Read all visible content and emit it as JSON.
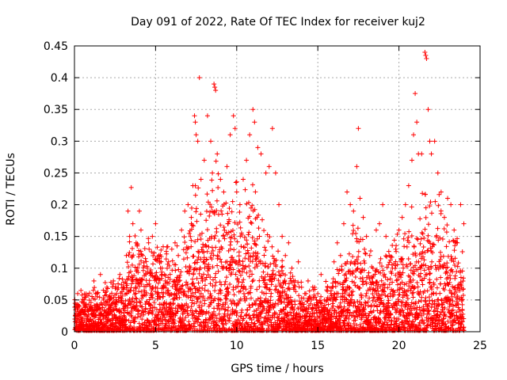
{
  "chart_data": {
    "type": "scatter",
    "title": "Day 091 of 2022, Rate Of TEC Index for receiver kuj2",
    "xlabel": "GPS time / hours",
    "ylabel": "ROTI / TECUs",
    "xlim": [
      0,
      25
    ],
    "ylim": [
      0,
      0.45
    ],
    "xticks": [
      0,
      5,
      10,
      15,
      20,
      25
    ],
    "yticks": [
      0,
      0.05,
      0.1,
      0.15,
      0.2,
      0.25,
      0.3,
      0.35,
      0.4,
      0.45
    ],
    "xtick_labels": [
      "0",
      "5",
      "10",
      "15",
      "20",
      "25"
    ],
    "ytick_labels": [
      "0",
      "0.05",
      "0.1",
      "0.15",
      "0.2",
      "0.25",
      "0.3",
      "0.35",
      "0.4",
      "0.45"
    ],
    "grid": true,
    "marker": "+",
    "color": "#ff0000",
    "series": [
      {
        "name": "",
        "points": [
          [
            0.1,
            0.02
          ],
          [
            0.2,
            0.06
          ],
          [
            0.3,
            0.04
          ],
          [
            0.4,
            0.065
          ],
          [
            0.5,
            0.03
          ],
          [
            0.6,
            0.05
          ],
          [
            0.8,
            0.02
          ],
          [
            1.0,
            0.04
          ],
          [
            1.2,
            0.08
          ],
          [
            1.4,
            0.06
          ],
          [
            1.6,
            0.09
          ],
          [
            1.8,
            0.05
          ],
          [
            2.0,
            0.07
          ],
          [
            2.2,
            0.04
          ],
          [
            2.4,
            0.08
          ],
          [
            2.6,
            0.06
          ],
          [
            2.8,
            0.09
          ],
          [
            3.0,
            0.07
          ],
          [
            3.2,
            0.12
          ],
          [
            3.3,
            0.19
          ],
          [
            3.4,
            0.15
          ],
          [
            3.5,
            0.227
          ],
          [
            3.6,
            0.17
          ],
          [
            3.8,
            0.14
          ],
          [
            4.0,
            0.19
          ],
          [
            4.1,
            0.16
          ],
          [
            4.2,
            0.12
          ],
          [
            4.4,
            0.09
          ],
          [
            4.6,
            0.13
          ],
          [
            4.8,
            0.15
          ],
          [
            5.0,
            0.17
          ],
          [
            5.2,
            0.12
          ],
          [
            5.4,
            0.1
          ],
          [
            5.6,
            0.08
          ],
          [
            5.8,
            0.11
          ],
          [
            6.0,
            0.13
          ],
          [
            6.2,
            0.14
          ],
          [
            6.4,
            0.12
          ],
          [
            6.6,
            0.16
          ],
          [
            6.8,
            0.19
          ],
          [
            7.0,
            0.2
          ],
          [
            7.2,
            0.18
          ],
          [
            7.3,
            0.23
          ],
          [
            7.4,
            0.34
          ],
          [
            7.45,
            0.33
          ],
          [
            7.5,
            0.31
          ],
          [
            7.6,
            0.3
          ],
          [
            7.7,
            0.4
          ],
          [
            7.8,
            0.24
          ],
          [
            8.0,
            0.27
          ],
          [
            8.2,
            0.34
          ],
          [
            8.4,
            0.3
          ],
          [
            8.5,
            0.25
          ],
          [
            8.6,
            0.39
          ],
          [
            8.65,
            0.385
          ],
          [
            8.7,
            0.38
          ],
          [
            8.8,
            0.28
          ],
          [
            9.0,
            0.24
          ],
          [
            9.2,
            0.22
          ],
          [
            9.4,
            0.26
          ],
          [
            9.6,
            0.31
          ],
          [
            9.8,
            0.34
          ],
          [
            9.9,
            0.32
          ],
          [
            10.0,
            0.22
          ],
          [
            10.2,
            0.2
          ],
          [
            10.4,
            0.24
          ],
          [
            10.6,
            0.27
          ],
          [
            10.8,
            0.31
          ],
          [
            11.0,
            0.35
          ],
          [
            11.1,
            0.33
          ],
          [
            11.3,
            0.29
          ],
          [
            11.5,
            0.28
          ],
          [
            11.8,
            0.25
          ],
          [
            12.0,
            0.26
          ],
          [
            12.2,
            0.32
          ],
          [
            12.4,
            0.25
          ],
          [
            12.6,
            0.2
          ],
          [
            12.8,
            0.15
          ],
          [
            13.0,
            0.12
          ],
          [
            13.2,
            0.14
          ],
          [
            13.4,
            0.1
          ],
          [
            13.6,
            0.08
          ],
          [
            13.8,
            0.11
          ],
          [
            14.0,
            0.07
          ],
          [
            14.2,
            0.06
          ],
          [
            14.4,
            0.08
          ],
          [
            14.6,
            0.05
          ],
          [
            14.8,
            0.07
          ],
          [
            15.0,
            0.06
          ],
          [
            15.2,
            0.09
          ],
          [
            15.4,
            0.05
          ],
          [
            15.6,
            0.07
          ],
          [
            15.8,
            0.06
          ],
          [
            16.0,
            0.11
          ],
          [
            16.2,
            0.14
          ],
          [
            16.4,
            0.12
          ],
          [
            16.6,
            0.17
          ],
          [
            16.8,
            0.22
          ],
          [
            17.0,
            0.2
          ],
          [
            17.2,
            0.19
          ],
          [
            17.4,
            0.26
          ],
          [
            17.5,
            0.32
          ],
          [
            17.6,
            0.21
          ],
          [
            17.8,
            0.18
          ],
          [
            18.0,
            0.15
          ],
          [
            18.2,
            0.12
          ],
          [
            18.4,
            0.1
          ],
          [
            18.6,
            0.16
          ],
          [
            18.8,
            0.17
          ],
          [
            19.0,
            0.2
          ],
          [
            19.2,
            0.15
          ],
          [
            19.4,
            0.12
          ],
          [
            19.6,
            0.1
          ],
          [
            19.8,
            0.13
          ],
          [
            20.0,
            0.16
          ],
          [
            20.2,
            0.18
          ],
          [
            20.4,
            0.2
          ],
          [
            20.6,
            0.23
          ],
          [
            20.8,
            0.27
          ],
          [
            20.9,
            0.31
          ],
          [
            21.0,
            0.375
          ],
          [
            21.1,
            0.33
          ],
          [
            21.2,
            0.28
          ],
          [
            21.4,
            0.28
          ],
          [
            21.6,
            0.44
          ],
          [
            21.65,
            0.435
          ],
          [
            21.7,
            0.43
          ],
          [
            21.8,
            0.35
          ],
          [
            21.9,
            0.3
          ],
          [
            22.0,
            0.28
          ],
          [
            22.2,
            0.3
          ],
          [
            22.4,
            0.25
          ],
          [
            22.6,
            0.22
          ],
          [
            22.8,
            0.18
          ],
          [
            23.0,
            0.21
          ],
          [
            23.2,
            0.2
          ],
          [
            23.4,
            0.16
          ],
          [
            23.6,
            0.14
          ],
          [
            23.8,
            0.2
          ],
          [
            24.0,
            0.17
          ]
        ]
      }
    ],
    "envelope": {
      "x": [
        0,
        1,
        2,
        3,
        3.5,
        4,
        5,
        6,
        7,
        7.5,
        8,
        8.5,
        9,
        9.5,
        10,
        10.5,
        11,
        11.5,
        12,
        12.5,
        13,
        14,
        15,
        16,
        17,
        17.5,
        18,
        19,
        20,
        20.5,
        21,
        21.5,
        22,
        22.5,
        23,
        23.5,
        24
      ],
      "y": [
        0.05,
        0.06,
        0.07,
        0.09,
        0.14,
        0.15,
        0.13,
        0.12,
        0.16,
        0.22,
        0.2,
        0.24,
        0.22,
        0.23,
        0.21,
        0.2,
        0.22,
        0.18,
        0.15,
        0.12,
        0.1,
        0.07,
        0.06,
        0.08,
        0.13,
        0.18,
        0.11,
        0.12,
        0.14,
        0.17,
        0.19,
        0.22,
        0.2,
        0.18,
        0.15,
        0.14,
        0.12
      ]
    }
  }
}
